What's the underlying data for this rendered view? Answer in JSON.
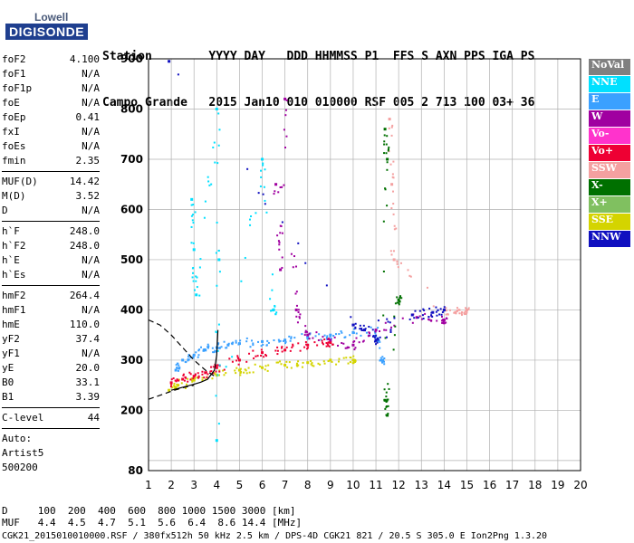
{
  "logo": {
    "top": "Lowell",
    "bottom": "DIGISONDE"
  },
  "header": {
    "line1": "Station        YYYY DAY   DDD HHMMSS P1  FFS S AXN PPS IGA PS",
    "line2": "Campo Grande   2015 Jan10 010 010000 RSF 005 2 713 100 03+ 36"
  },
  "params": [
    [
      [
        "foF2",
        "4.100"
      ],
      [
        "foF1",
        "N/A"
      ],
      [
        "foF1p",
        "N/A"
      ],
      [
        "foE",
        "N/A"
      ],
      [
        "foEp",
        "0.41"
      ],
      [
        "fxI",
        "N/A"
      ],
      [
        "foEs",
        "N/A"
      ],
      [
        "fmin",
        "2.35"
      ]
    ],
    [
      [
        "MUF(D)",
        "14.42"
      ],
      [
        "M(D)",
        "3.52"
      ],
      [
        "D",
        "N/A"
      ]
    ],
    [
      [
        "h`F",
        "248.0"
      ],
      [
        "h`F2",
        "248.0"
      ],
      [
        "h`E",
        "N/A"
      ],
      [
        "h`Es",
        "N/A"
      ]
    ],
    [
      [
        "hmF2",
        "264.4"
      ],
      [
        "hmF1",
        "N/A"
      ],
      [
        "hmE",
        "110.0"
      ],
      [
        "yF2",
        "37.4"
      ],
      [
        "yF1",
        "N/A"
      ],
      [
        "yE",
        "20.0"
      ],
      [
        "B0",
        "33.1"
      ],
      [
        "B1",
        "3.39"
      ]
    ],
    [
      [
        "C-level",
        "44"
      ]
    ]
  ],
  "auto": [
    "Auto:",
    "Artist5",
    "500200"
  ],
  "legend": [
    {
      "label": "NoVal",
      "color": "#808080"
    },
    {
      "label": "NNE",
      "color": "#00e0ff"
    },
    {
      "label": "E",
      "color": "#3aa0ff"
    },
    {
      "label": "W",
      "color": "#a000a0"
    },
    {
      "label": "Vo-",
      "color": "#ff33cc"
    },
    {
      "label": "Vo+",
      "color": "#ee0033"
    },
    {
      "label": "SSW",
      "color": "#f4a0a0"
    },
    {
      "label": "X-",
      "color": "#007000"
    },
    {
      "label": "X+",
      "color": "#80c060"
    },
    {
      "label": "SSE",
      "color": "#d4d400"
    },
    {
      "label": "NNW",
      "color": "#1010c0"
    }
  ],
  "footer": {
    "line1": "D     100  200  400  600  800 1000 1500 3000 [km]",
    "line2": "MUF   4.4  4.5  4.7  5.1  5.6  6.4  8.6 14.4 [MHz]",
    "line3": "CGK21_2015010010000.RSF / 380fx512h 50 kHz 2.5 km / DPS-4D CGK21 821 / 20.5 S 305.0 E Ion2Png 1.3.20"
  },
  "chart_data": {
    "type": "scatter",
    "xlim": [
      1,
      20
    ],
    "ylim": [
      80,
      900
    ],
    "xticks": [
      1,
      2,
      3,
      4,
      5,
      6,
      7,
      8,
      9,
      10,
      11,
      12,
      13,
      14,
      15,
      16,
      17,
      18,
      19,
      20
    ],
    "yticks": [
      100,
      200,
      300,
      400,
      500,
      600,
      700,
      800,
      900
    ],
    "ytick_labels_shown": [
      80,
      200,
      300,
      400,
      500,
      600,
      700,
      800,
      900
    ],
    "y_axis_note": "height [km]",
    "x_axis_note": "frequency [MHz]",
    "grid": true,
    "series": [
      {
        "name": "E",
        "points": [
          [
            2.2,
            280
          ],
          [
            2.5,
            300
          ],
          [
            3.0,
            310
          ],
          [
            3.5,
            320
          ],
          [
            4.0,
            325
          ],
          [
            4.5,
            330
          ],
          [
            5.0,
            333
          ],
          [
            6.0,
            337
          ],
          [
            7.0,
            340
          ],
          [
            8.0,
            345
          ],
          [
            9.0,
            350
          ],
          [
            10.0,
            355
          ],
          [
            11.0,
            360
          ],
          [
            11.3,
            300
          ]
        ]
      },
      {
        "name": "SSE",
        "points": [
          [
            1.9,
            240
          ],
          [
            2.3,
            250
          ],
          [
            3.0,
            260
          ],
          [
            4.0,
            270
          ],
          [
            5.0,
            280
          ],
          [
            6.0,
            285
          ],
          [
            7.0,
            290
          ],
          [
            8.0,
            295
          ],
          [
            9.0,
            300
          ],
          [
            10.0,
            300
          ]
        ]
      },
      {
        "name": "Vo+",
        "points": [
          [
            2.0,
            255
          ],
          [
            2.5,
            262
          ],
          [
            3.0,
            268
          ],
          [
            3.5,
            275
          ],
          [
            4.0,
            285
          ],
          [
            5.0,
            300
          ],
          [
            6.0,
            315
          ],
          [
            7.0,
            320
          ],
          [
            8.0,
            330
          ],
          [
            9.0,
            335
          ]
        ]
      },
      {
        "name": "W",
        "points": [
          [
            6.6,
            650
          ],
          [
            6.8,
            480
          ],
          [
            7.0,
            820
          ],
          [
            7.5,
            400
          ],
          [
            8.0,
            350
          ],
          [
            9.0,
            340
          ],
          [
            10.0,
            330
          ],
          [
            11.0,
            360
          ],
          [
            12.8,
            385
          ],
          [
            14.0,
            380
          ]
        ]
      },
      {
        "name": "NNE",
        "points": [
          [
            2.9,
            620
          ],
          [
            3.0,
            520
          ],
          [
            3.1,
            430
          ],
          [
            4.0,
            800
          ],
          [
            4.1,
            500
          ],
          [
            4.0,
            140
          ],
          [
            6.0,
            700
          ],
          [
            6.5,
            400
          ]
        ]
      },
      {
        "name": "SSW",
        "points": [
          [
            11.6,
            780
          ],
          [
            11.7,
            650
          ],
          [
            11.8,
            500
          ],
          [
            14.0,
            400
          ],
          [
            14.5,
            395
          ],
          [
            15.0,
            400
          ]
        ]
      },
      {
        "name": "X-",
        "points": [
          [
            11.4,
            760
          ],
          [
            11.5,
            700
          ],
          [
            11.4,
            220
          ],
          [
            11.5,
            190
          ],
          [
            12.0,
            420
          ]
        ]
      },
      {
        "name": "NNW",
        "points": [
          [
            1.9,
            895
          ],
          [
            10.0,
            370
          ],
          [
            10.5,
            360
          ],
          [
            12.6,
            390
          ],
          [
            13.5,
            395
          ],
          [
            14.0,
            400
          ],
          [
            11.0,
            340
          ]
        ]
      }
    ],
    "curves": [
      {
        "name": "profile",
        "style": "dashed",
        "points": [
          [
            1.0,
            380
          ],
          [
            1.5,
            370
          ],
          [
            2.0,
            350
          ],
          [
            2.5,
            325
          ],
          [
            3.0,
            300
          ],
          [
            3.5,
            280
          ],
          [
            4.0,
            265
          ]
        ]
      },
      {
        "name": "profile-lower",
        "style": "dashed",
        "points": [
          [
            1.0,
            222
          ],
          [
            1.5,
            230
          ],
          [
            2.0,
            238
          ],
          [
            2.5,
            245
          ],
          [
            3.0,
            250
          ]
        ]
      },
      {
        "name": "trace",
        "style": "solid",
        "points": [
          [
            2.0,
            240
          ],
          [
            2.5,
            246
          ],
          [
            3.0,
            252
          ],
          [
            3.3,
            256
          ],
          [
            3.6,
            262
          ],
          [
            3.9,
            280
          ],
          [
            4.0,
            310
          ],
          [
            4.05,
            360
          ]
        ]
      }
    ]
  }
}
